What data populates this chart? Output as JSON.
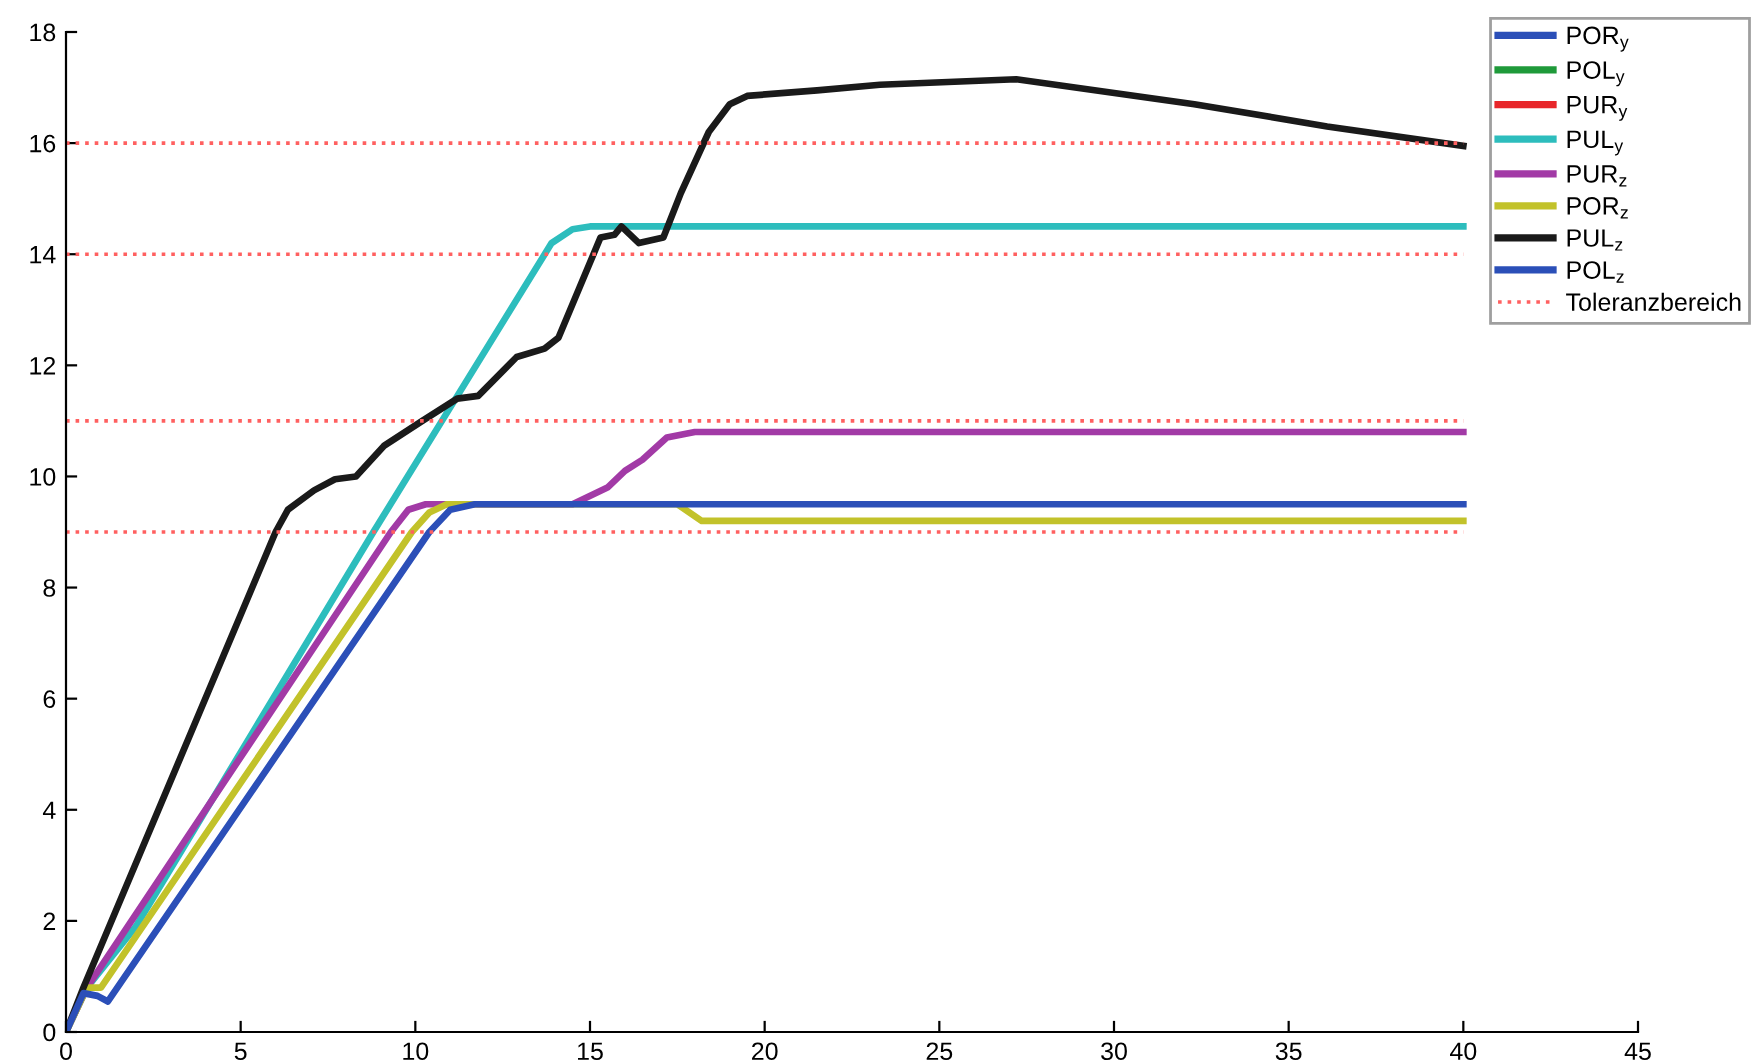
{
  "chart_data": {
    "type": "line",
    "xlim": [
      0,
      45
    ],
    "ylim": [
      0,
      18
    ],
    "xticks": [
      0,
      5,
      10,
      15,
      20,
      25,
      30,
      35,
      40,
      45
    ],
    "yticks": [
      0,
      2,
      4,
      6,
      8,
      10,
      12,
      14,
      16,
      18
    ],
    "grid": false,
    "legend": "top right",
    "line_style": "solid",
    "marker": "none",
    "series": [
      {
        "name": "POR$_{y}$",
        "color": "#2b4fb8"
      },
      {
        "name": "POL$_{y}$",
        "color": "#1f9a3a"
      },
      {
        "name": "PUR$_{y}$",
        "color": "#e8262a"
      },
      {
        "name": "PUL$_{y}$",
        "color": "#2dbdbd",
        "x": [
          0,
          0.6,
          2,
          8.8,
          13.9,
          14.5,
          15,
          40
        ],
        "values": [
          0,
          0.8,
          1.9,
          9,
          14.2,
          14.45,
          14.5,
          14.5
        ]
      },
      {
        "name": "PUR$_{z}$",
        "color": "#a23aa6",
        "x": [
          0,
          0.6,
          9.3,
          9.8,
          10.3,
          14.5,
          15.5,
          16,
          16.5,
          17.2,
          18,
          40
        ],
        "values": [
          0,
          0.8,
          9.0,
          9.4,
          9.5,
          9.5,
          9.8,
          10.1,
          10.3,
          10.7,
          10.8,
          10.8
        ]
      },
      {
        "name": "POR$_{z}$",
        "color": "#c2c22a",
        "x": [
          0,
          0.6,
          1.0,
          9.9,
          10.4,
          10.9,
          17.5,
          18.2,
          40
        ],
        "values": [
          0,
          0.8,
          0.8,
          9.0,
          9.35,
          9.5,
          9.5,
          9.2,
          9.2
        ]
      },
      {
        "name": "PUL$_{z}$",
        "color": "#1a1a1a",
        "x": [
          0,
          0.5,
          6.0,
          6.35,
          7.1,
          7.7,
          8.3,
          9.1,
          10.2,
          11.2,
          11.8,
          12.9,
          13.7,
          14.1,
          14.7,
          15.3,
          15.7,
          15.9,
          16.4,
          17.1,
          17.6,
          18.4,
          19.0,
          19.5,
          21.5,
          23.3,
          27.2,
          32.3,
          36.1,
          40
        ],
        "values": [
          0,
          0.8,
          9.0,
          9.4,
          9.75,
          9.95,
          10.0,
          10.55,
          11.0,
          11.4,
          11.45,
          12.15,
          12.3,
          12.5,
          13.4,
          14.3,
          14.35,
          14.5,
          14.2,
          14.3,
          15.1,
          16.2,
          16.7,
          16.85,
          16.95,
          17.05,
          17.15,
          16.7,
          16.3,
          15.95
        ]
      },
      {
        "name": "POL$_{z}$",
        "color": "#2b4fb8",
        "x": [
          0,
          0.5,
          0.9,
          1.2,
          10.4,
          11.0,
          11.7,
          40
        ],
        "values": [
          0,
          0.7,
          0.65,
          0.55,
          9.0,
          9.4,
          9.5,
          9.5
        ]
      }
    ],
    "ref_lines": [
      {
        "axis": "y",
        "value": 16,
        "label": "Toleranzbereich",
        "color": "#ff6060",
        "line_style": "dotted"
      },
      {
        "axis": "y",
        "value": 14,
        "label": null,
        "color": "#ff6060",
        "line_style": "dotted"
      },
      {
        "axis": "y",
        "value": 11,
        "label": null,
        "color": "#ff6060",
        "line_style": "dotted"
      },
      {
        "axis": "y",
        "value": 9,
        "label": null,
        "color": "#ff6060",
        "line_style": "dotted"
      }
    ]
  }
}
